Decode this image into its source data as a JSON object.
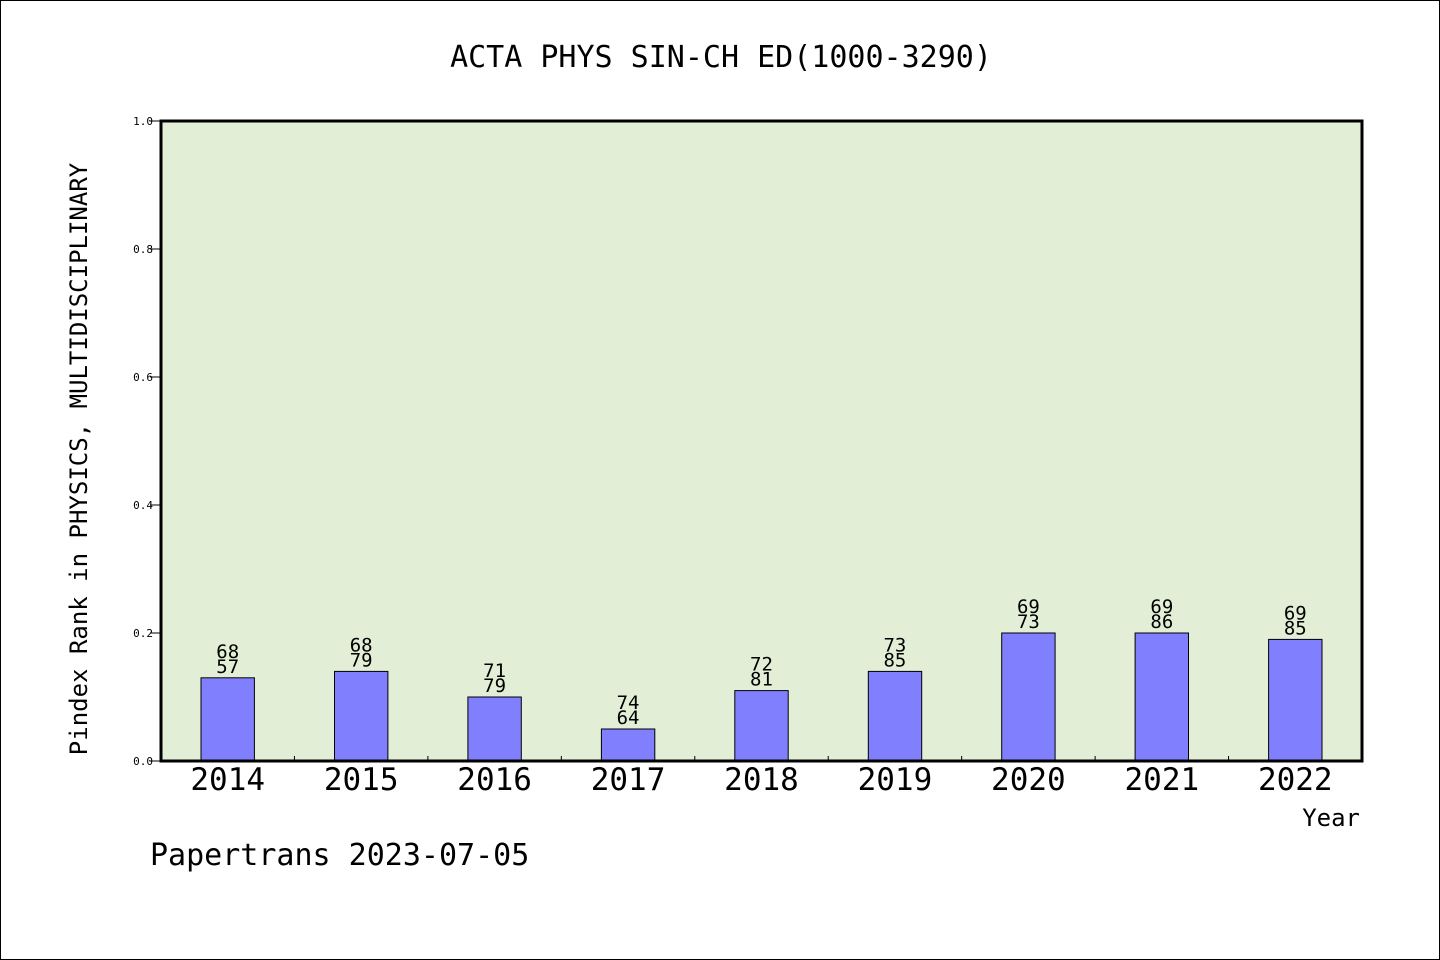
{
  "chart_data": {
    "type": "bar",
    "title": "ACTA PHYS SIN-CH ED(1000-3290)",
    "xlabel": "Year",
    "ylabel": "Pindex Rank in PHYSICS, MULTIDISCIPLINARY",
    "categories": [
      "2014",
      "2015",
      "2016",
      "2017",
      "2018",
      "2019",
      "2020",
      "2021",
      "2022"
    ],
    "values": [
      0.13,
      0.14,
      0.1,
      0.05,
      0.11,
      0.14,
      0.2,
      0.2,
      0.19
    ],
    "bar_labels": [
      [
        "68",
        "57"
      ],
      [
        "68",
        "79"
      ],
      [
        "71",
        "79"
      ],
      [
        "74",
        "64"
      ],
      [
        "72",
        "81"
      ],
      [
        "73",
        "85"
      ],
      [
        "69",
        "73"
      ],
      [
        "69",
        "86"
      ],
      [
        "69",
        "85"
      ]
    ],
    "ylim": [
      0.0,
      1.0
    ],
    "yticks": [
      "0.0",
      "0.2",
      "0.4",
      "0.6",
      "0.8",
      "1.0"
    ],
    "grid": false,
    "legend": "none",
    "colors": {
      "plot_background": "#e2efd6",
      "bar_fill": "#8080ff",
      "bar_stroke": "#000000",
      "axis": "#000000"
    }
  },
  "footer": {
    "text": "Papertrans 2023-07-05"
  }
}
